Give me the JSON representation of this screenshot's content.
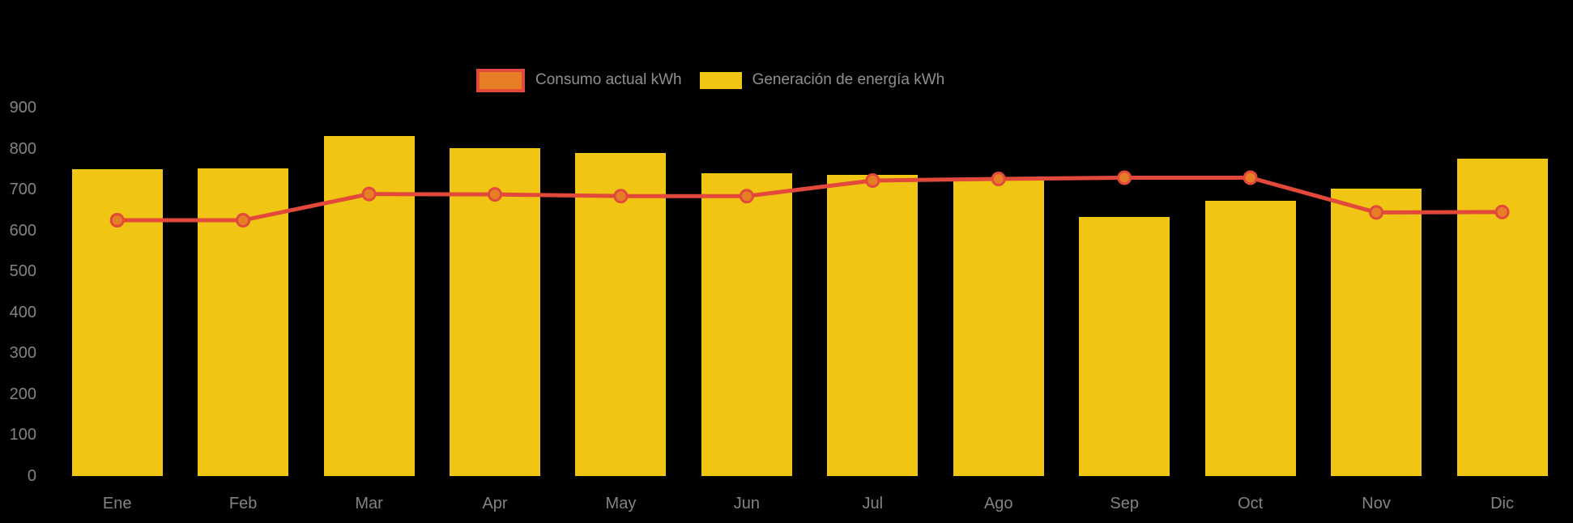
{
  "chart_data": {
    "type": "bar",
    "title": "",
    "xlabel": "",
    "ylabel": "",
    "categories": [
      "Ene",
      "Feb",
      "Mar",
      "Apr",
      "May",
      "Jun",
      "Jul",
      "Ago",
      "Sep",
      "Oct",
      "Nov",
      "Dic"
    ],
    "series": [
      {
        "name": "Consumo actual kWh",
        "type": "line",
        "values": [
          625,
          625,
          689,
          688,
          684,
          684,
          722,
          726,
          729,
          729,
          644,
          645
        ],
        "line_color": "#e2493b",
        "point_fill_color": "#e67e26"
      },
      {
        "name": "Generación de energía kWh",
        "type": "bar",
        "values": [
          750,
          752,
          830,
          801,
          789,
          739,
          736,
          724,
          632,
          672,
          703,
          775
        ],
        "bar_color": "#f0c513"
      }
    ],
    "ylim": [
      0,
      900
    ],
    "yticks": [
      0,
      100,
      200,
      300,
      400,
      500,
      600,
      700,
      800,
      900
    ],
    "grid": false,
    "legend_position": "top-center",
    "background_color": "#000000",
    "axis_label_color": "#838383",
    "legend_label_color": "#8f8f8f"
  }
}
